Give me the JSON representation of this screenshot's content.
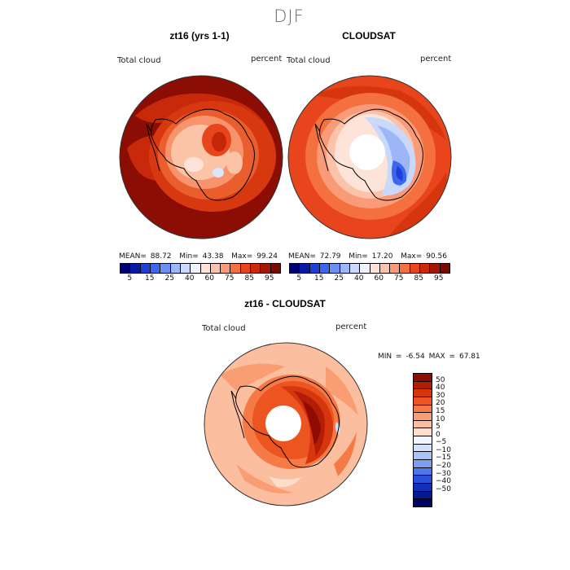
{
  "season": "DJF",
  "panels": [
    {
      "title": "zt16 (yrs 1-1)",
      "left_label": "Total cloud",
      "right_label": "percent",
      "mean_label": "MEAN=",
      "mean": "88.72",
      "min_label": "Min=",
      "min": "43.38",
      "max_label": "Max=",
      "max": "99.24"
    },
    {
      "title": "CLOUDSAT",
      "left_label": "Total cloud",
      "right_label": "percent",
      "mean_label": "MEAN=",
      "mean": "72.79",
      "min_label": "Min=",
      "min": "17.20",
      "max_label": "Max=",
      "max": "90.56"
    }
  ],
  "colorbar_top": {
    "ticks": [
      "5",
      "15",
      "25",
      "40",
      "60",
      "75",
      "85",
      "95"
    ],
    "colors": [
      "#00006e",
      "#0a1aa8",
      "#1e3fd6",
      "#3b66ee",
      "#6a8ff5",
      "#9cb6f8",
      "#c9d9fb",
      "#eef3fd",
      "#fde3d8",
      "#fcc3aa",
      "#f99a78",
      "#f4703f",
      "#e8451c",
      "#cc2a0b",
      "#a51506",
      "#7a0a02"
    ]
  },
  "diff_panel": {
    "title": "zt16 - CLOUDSAT",
    "left_label": "Total cloud",
    "right_label": "percent",
    "min_label": "MIN =",
    "min": "-6.54",
    "max_label": "MAX =",
    "max": "67.81",
    "colorbar_ticks": [
      "50",
      "40",
      "30",
      "20",
      "15",
      "10",
      "5",
      "0",
      "−5",
      "−10",
      "−15",
      "−20",
      "−30",
      "−40",
      "−50"
    ],
    "colorbar_colors": [
      "#8e0c02",
      "#b31d06",
      "#d6360e",
      "#ec5520",
      "#f57a45",
      "#f99d72",
      "#fbbe9f",
      "#fdddcc",
      "#f2f5fd",
      "#d2e0fb",
      "#a9c2f7",
      "#7c9ff2",
      "#4d78ea",
      "#2a4fd9",
      "#1230b5",
      "#061a8c",
      "#000066"
    ]
  },
  "chart_data": [
    {
      "type": "heatmap",
      "title": "zt16 (yrs 1-1)",
      "variable": "Total cloud",
      "units": "percent",
      "projection": "south polar stereographic",
      "stats": {
        "mean": 88.72,
        "min": 43.38,
        "max": 99.24
      },
      "levels": [
        5,
        15,
        25,
        40,
        60,
        75,
        85,
        95
      ]
    },
    {
      "type": "heatmap",
      "title": "CLOUDSAT",
      "variable": "Total cloud",
      "units": "percent",
      "projection": "south polar stereographic",
      "stats": {
        "mean": 72.79,
        "min": 17.2,
        "max": 90.56
      },
      "levels": [
        5,
        15,
        25,
        40,
        60,
        75,
        85,
        95
      ]
    },
    {
      "type": "heatmap",
      "title": "zt16 - CLOUDSAT",
      "variable": "Total cloud",
      "units": "percent",
      "projection": "south polar stereographic",
      "stats": {
        "min": -6.54,
        "max": 67.81
      },
      "levels": [
        50,
        40,
        30,
        20,
        15,
        10,
        5,
        0,
        -5,
        -10,
        -15,
        -20,
        -30,
        -40,
        -50
      ]
    }
  ]
}
